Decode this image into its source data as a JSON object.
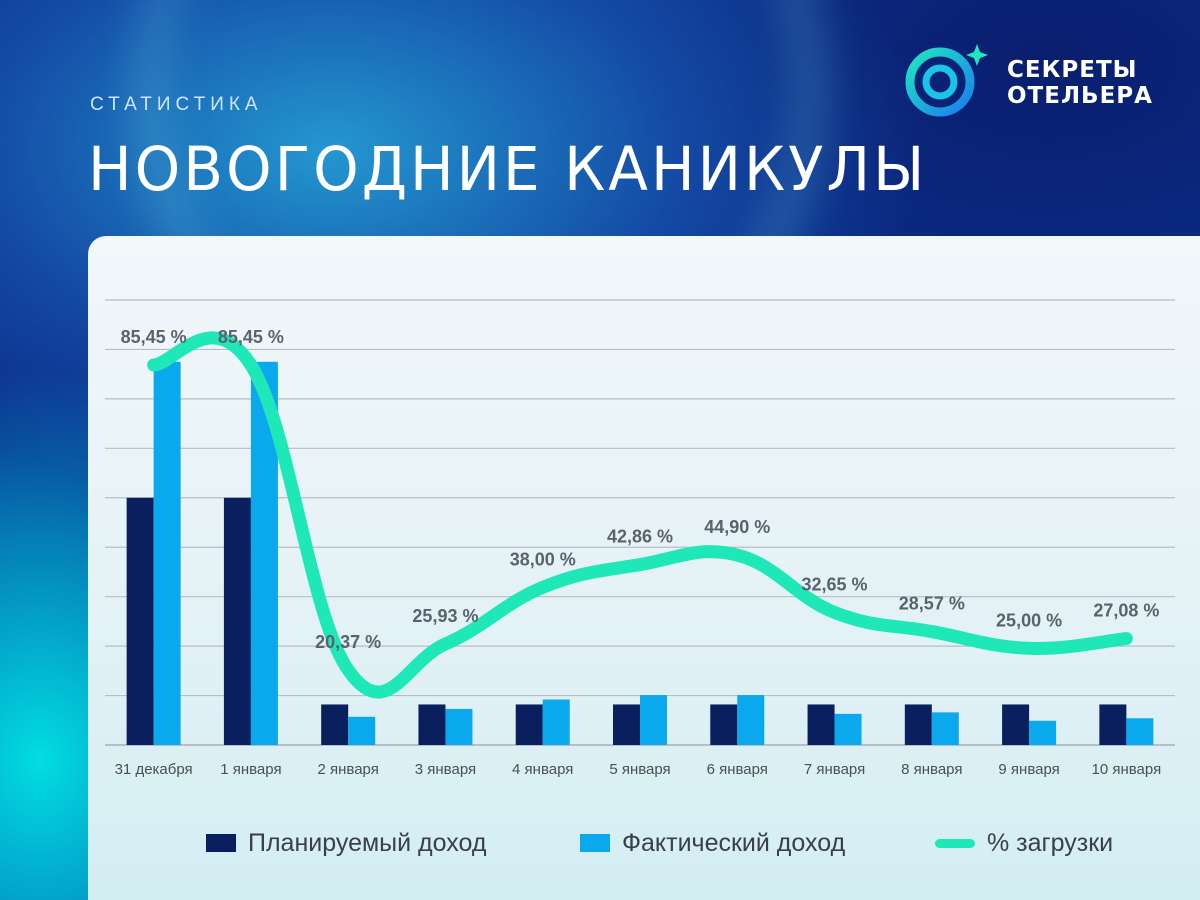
{
  "header": {
    "subtitle": "СТАТИСТИКА",
    "title": "НОВОГОДНИЕ КАНИКУЛЫ",
    "logo_line1": "СЕКРЕТЫ",
    "logo_line2": "ОТЕЛЬЕРА"
  },
  "colors": {
    "planned": "#0a1f5e",
    "actual": "#0aa8ec",
    "load": "#1ee8b8",
    "grid": "#b9bdc6",
    "label": "#5a6270"
  },
  "chart_data": {
    "type": "bar",
    "title": "НОВОГОДНИЕ КАНИКУЛЫ",
    "categories": [
      "31 декабря",
      "1 января",
      "2 января",
      "3 января",
      "4 января",
      "5 января",
      "6 января",
      "7 января",
      "8 января",
      "9 января",
      "10 января"
    ],
    "series": [
      {
        "name": "Планируемый доход",
        "kind": "bar",
        "values": [
          50,
          50,
          8.2,
          8.2,
          8.2,
          8.2,
          8.2,
          8.2,
          8.2,
          8.2,
          8.2
        ]
      },
      {
        "name": "Фактический доход",
        "kind": "bar",
        "values": [
          77.5,
          77.5,
          5.7,
          7.3,
          9.2,
          10.1,
          10.1,
          6.3,
          6.6,
          4.9,
          5.4
        ]
      },
      {
        "name": "% загрузки",
        "kind": "line",
        "axis": "secondary",
        "values": [
          85.45,
          85.45,
          20.37,
          25.93,
          38.0,
          42.86,
          44.9,
          32.65,
          28.57,
          25.0,
          27.08
        ]
      }
    ],
    "data_labels": [
      "85,45 %",
      "85,45 %",
      "20,37 %",
      "25,93 %",
      "38,00 %",
      "42,86 %",
      "44,90 %",
      "32,65 %",
      "28,57 %",
      "25,00 %",
      "27,08 %"
    ],
    "ylim": [
      0,
      90
    ],
    "y2lim": [
      0,
      100
    ],
    "xlabel": "",
    "ylabel": "",
    "grid": true,
    "legend": "bottom"
  },
  "legend": {
    "planned": "Планируемый доход",
    "actual": "Фактический доход",
    "load": "% загрузки"
  }
}
